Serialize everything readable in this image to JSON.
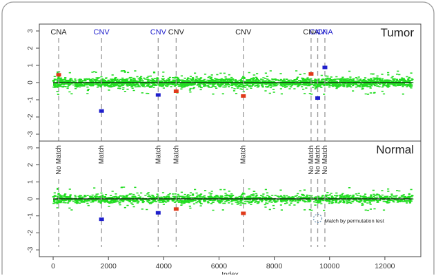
{
  "chart_data": {
    "type": "scatter",
    "xlabel": "Index",
    "xlim": [
      -500,
      13300
    ],
    "x_ticks": [
      0,
      2000,
      4000,
      6000,
      8000,
      10000,
      12000
    ],
    "y_ticks": [
      -3,
      -2,
      -1,
      0,
      1,
      2,
      3
    ],
    "colors": {
      "noise": "#22dd22",
      "blue": "#1f1fcc",
      "red": "#e03a1a",
      "dark": "#222222",
      "baseline": "#111111",
      "dash": "#999999"
    },
    "panels": [
      {
        "name": "Tumor",
        "ylim": [
          -3.4,
          3.4
        ],
        "markers": [
          {
            "x": 200,
            "label": "CNA",
            "color": "dark"
          },
          {
            "x": 1750,
            "label": "CNV",
            "color": "blue"
          },
          {
            "x": 3800,
            "label": "CNV",
            "color": "blue"
          },
          {
            "x": 4450,
            "label": "CNV",
            "color": "dark"
          },
          {
            "x": 6880,
            "label": "CNV",
            "color": "dark"
          },
          {
            "x": 9330,
            "label": "CNA",
            "color": "dark"
          },
          {
            "x": 9570,
            "label": "CNV",
            "color": "blue"
          },
          {
            "x": 9830,
            "label": "CNA",
            "color": "blue"
          }
        ],
        "segments": [
          {
            "x": 200,
            "y": 0.45,
            "color": "red"
          },
          {
            "x": 1750,
            "y": -1.65,
            "color": "blue"
          },
          {
            "x": 3800,
            "y": -0.72,
            "color": "blue"
          },
          {
            "x": 4450,
            "y": -0.5,
            "color": "red"
          },
          {
            "x": 6880,
            "y": -0.78,
            "color": "red"
          },
          {
            "x": 9330,
            "y": 0.5,
            "color": "red"
          },
          {
            "x": 9570,
            "y": -0.9,
            "color": "blue"
          },
          {
            "x": 9830,
            "y": 0.88,
            "color": "blue"
          }
        ]
      },
      {
        "name": "Normal",
        "ylim": [
          -3.4,
          3.4
        ],
        "markers": [
          {
            "x": 200,
            "label": "No Match"
          },
          {
            "x": 1750,
            "label": "Match"
          },
          {
            "x": 3800,
            "label": "Match"
          },
          {
            "x": 4450,
            "label": "Match"
          },
          {
            "x": 6880,
            "label": "Match"
          },
          {
            "x": 9330,
            "label": "No Match"
          },
          {
            "x": 9570,
            "label": "No Match"
          },
          {
            "x": 9830,
            "label": "No Match"
          }
        ],
        "segments": [
          {
            "x": 1750,
            "y": -1.2,
            "color": "blue"
          },
          {
            "x": 3800,
            "y": -0.82,
            "color": "blue"
          },
          {
            "x": 4450,
            "y": -0.6,
            "color": "red"
          },
          {
            "x": 6880,
            "y": -0.85,
            "color": "red"
          }
        ],
        "annotation": {
          "text": "Match by permutation test",
          "x": 9570,
          "y": -1.15
        }
      }
    ]
  }
}
